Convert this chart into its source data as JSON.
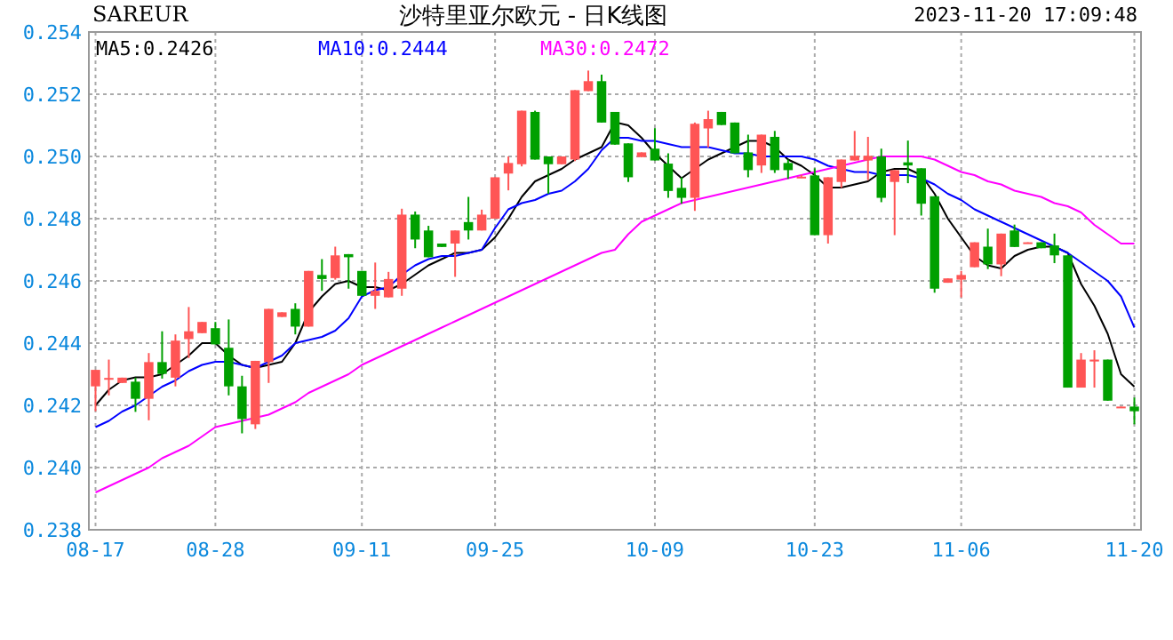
{
  "chart_data": {
    "type": "candlestick",
    "title": "沙特里亚尔欧元 - 日K线图",
    "subtitle": "SAREUR",
    "annotations": [
      "2023-11-20 17:09:48"
    ],
    "categories": [
      "08-17",
      null,
      null,
      null,
      null,
      null,
      null,
      null,
      null,
      "08-28",
      null,
      null,
      null,
      null,
      null,
      null,
      null,
      null,
      null,
      null,
      "09-11",
      null,
      null,
      null,
      null,
      null,
      null,
      null,
      null,
      null,
      "09-25",
      null,
      null,
      null,
      null,
      null,
      null,
      null,
      null,
      null,
      null,
      null,
      "10-09",
      null,
      null,
      null,
      null,
      null,
      null,
      null,
      null,
      null,
      null,
      null,
      "10-23",
      null,
      null,
      null,
      null,
      null,
      null,
      null,
      null,
      null,
      null,
      "11-06",
      null,
      null,
      null,
      null,
      null,
      null,
      null,
      null,
      null,
      null,
      null,
      null,
      "11-20"
    ],
    "ohlc": [
      [
        0.24261,
        0.24314,
        0.24181,
        0.24314
      ],
      [
        0.24284,
        0.24347,
        0.24232,
        0.24288
      ],
      [
        0.24272,
        0.24289,
        0.24272,
        0.24289
      ],
      [
        0.24276,
        0.24289,
        0.24179,
        0.24221
      ],
      [
        0.24221,
        0.24368,
        0.24152,
        0.24339
      ],
      [
        0.24339,
        0.24438,
        0.24286,
        0.24301
      ],
      [
        0.24289,
        0.24428,
        0.24261,
        0.24408
      ],
      [
        0.24413,
        0.24516,
        0.24352,
        0.24438
      ],
      [
        0.24432,
        0.24468,
        0.24432,
        0.24468
      ],
      [
        0.24448,
        0.24468,
        0.24396,
        0.24396
      ],
      [
        0.24385,
        0.24476,
        0.24232,
        0.24261
      ],
      [
        0.24261,
        0.24295,
        0.2411,
        0.24156
      ],
      [
        0.24139,
        0.24343,
        0.24124,
        0.24343
      ],
      [
        0.24339,
        0.2451,
        0.24272,
        0.2451
      ],
      [
        0.24484,
        0.24499,
        0.24484,
        0.24499
      ],
      [
        0.2451,
        0.24528,
        0.24428,
        0.24453
      ],
      [
        0.24453,
        0.24632,
        0.24453,
        0.24632
      ],
      [
        0.24619,
        0.2467,
        0.24568,
        0.24606
      ],
      [
        0.24609,
        0.2471,
        0.24604,
        0.24682
      ],
      [
        0.24686,
        0.24686,
        0.24575,
        0.24676
      ],
      [
        0.24632,
        0.24632,
        0.24552,
        0.24552
      ],
      [
        0.24552,
        0.24659,
        0.2451,
        0.24568
      ],
      [
        0.24547,
        0.24629,
        0.24547,
        0.24606
      ],
      [
        0.24575,
        0.24832,
        0.24552,
        0.24813
      ],
      [
        0.24813,
        0.24823,
        0.24705,
        0.24733
      ],
      [
        0.24762,
        0.24777,
        0.24676,
        0.24676
      ],
      [
        0.2472,
        0.2472,
        0.24709,
        0.24709
      ],
      [
        0.2472,
        0.24762,
        0.24613,
        0.24762
      ],
      [
        0.24789,
        0.2487,
        0.24733,
        0.24762
      ],
      [
        0.24762,
        0.24829,
        0.24762,
        0.24813
      ],
      [
        0.248,
        0.24933,
        0.248,
        0.24933
      ],
      [
        0.24945,
        0.25,
        0.24891,
        0.24979
      ],
      [
        0.24975,
        0.25147,
        0.24968,
        0.25147
      ],
      [
        0.25143,
        0.25147,
        0.2499,
        0.2499
      ],
      [
        0.25,
        0.25,
        0.2488,
        0.24975
      ],
      [
        0.24975,
        0.25,
        0.24975,
        0.25
      ],
      [
        0.2499,
        0.25213,
        0.24985,
        0.25213
      ],
      [
        0.2521,
        0.25276,
        0.2521,
        0.25242
      ],
      [
        0.25242,
        0.25263,
        0.25109,
        0.25109
      ],
      [
        0.25143,
        0.25143,
        0.25038,
        0.25038
      ],
      [
        0.25042,
        0.25042,
        0.24918,
        0.24933
      ],
      [
        0.24998,
        0.25013,
        0.24998,
        0.25013
      ],
      [
        0.25025,
        0.25091,
        0.24987,
        0.24987
      ],
      [
        0.24977,
        0.2501,
        0.24867,
        0.24889
      ],
      [
        0.24899,
        0.24933,
        0.24848,
        0.24867
      ],
      [
        0.24867,
        0.25109,
        0.24825,
        0.25105
      ],
      [
        0.2509,
        0.25147,
        0.25029,
        0.2512
      ],
      [
        0.25143,
        0.25143,
        0.25101,
        0.25101
      ],
      [
        0.25109,
        0.25109,
        0.2501,
        0.2501
      ],
      [
        0.25013,
        0.2507,
        0.24933,
        0.24956
      ],
      [
        0.24971,
        0.2507,
        0.24947,
        0.2507
      ],
      [
        0.25063,
        0.25082,
        0.24947,
        0.24956
      ],
      [
        0.24979,
        0.2499,
        0.24928,
        0.24956
      ],
      [
        0.24931,
        0.24941,
        0.24931,
        0.24935
      ],
      [
        0.24939,
        0.24962,
        0.24747,
        0.24747
      ],
      [
        0.24747,
        0.24933,
        0.2472,
        0.24933
      ],
      [
        0.24918,
        0.2499,
        0.24899,
        0.2499
      ],
      [
        0.24987,
        0.25082,
        0.24987,
        0.25002
      ],
      [
        0.24987,
        0.25063,
        0.24924,
        0.25002
      ],
      [
        0.25,
        0.25025,
        0.24853,
        0.24867
      ],
      [
        0.24918,
        0.24956,
        0.24747,
        0.24956
      ],
      [
        0.24981,
        0.25051,
        0.24914,
        0.24971
      ],
      [
        0.24962,
        0.24962,
        0.2481,
        0.24848
      ],
      [
        0.24872,
        0.24872,
        0.24562,
        0.24575
      ],
      [
        0.24594,
        0.24608,
        0.24594,
        0.24608
      ],
      [
        0.24604,
        0.24632,
        0.24547,
        0.24619
      ],
      [
        0.24644,
        0.24724,
        0.24644,
        0.24724
      ],
      [
        0.2471,
        0.24768,
        0.24638,
        0.24653
      ],
      [
        0.24653,
        0.24752,
        0.24615,
        0.24752
      ],
      [
        0.24762,
        0.24781,
        0.24709,
        0.24709
      ],
      [
        0.2472,
        0.24724,
        0.2472,
        0.24724
      ],
      [
        0.24724,
        0.24724,
        0.24705,
        0.24705
      ],
      [
        0.24714,
        0.24752,
        0.24657,
        0.24682
      ],
      [
        0.24682,
        0.24682,
        0.24257,
        0.24257
      ],
      [
        0.24257,
        0.24368,
        0.24257,
        0.24347
      ],
      [
        0.24341,
        0.24377,
        0.24257,
        0.24347
      ],
      [
        0.24347,
        0.24347,
        0.24215,
        0.24215
      ],
      [
        0.24192,
        0.24196,
        0.24192,
        0.24196
      ],
      [
        0.24196,
        0.24225,
        0.24139,
        0.24181
      ]
    ],
    "series": [
      {
        "name": "MA5:0.2426",
        "type": "line",
        "color": "#000000",
        "values": [
          0.242,
          0.2425,
          0.2428,
          0.2429,
          0.2429,
          0.243,
          0.2433,
          0.2436,
          0.244,
          0.244,
          0.2436,
          0.2433,
          0.2432,
          0.2433,
          0.2434,
          0.244,
          0.245,
          0.2455,
          0.2459,
          0.246,
          0.2458,
          0.2458,
          0.2457,
          0.2459,
          0.2462,
          0.2465,
          0.2467,
          0.2469,
          0.2469,
          0.247,
          0.2474,
          0.248,
          0.2487,
          0.2492,
          0.2494,
          0.2496,
          0.2499,
          0.2501,
          0.2503,
          0.2511,
          0.251,
          0.2506,
          0.2501,
          0.2497,
          0.2493,
          0.2496,
          0.2499,
          0.2501,
          0.2503,
          0.2505,
          0.2505,
          0.2503,
          0.2499,
          0.2497,
          0.2494,
          0.249,
          0.249,
          0.2491,
          0.2492,
          0.2495,
          0.2496,
          0.2496,
          0.2494,
          0.2488,
          0.248,
          0.2474,
          0.2468,
          0.2465,
          0.2464,
          0.2468,
          0.247,
          0.2471,
          0.2471,
          0.2469,
          0.2459,
          0.2452,
          0.2443,
          0.243,
          0.2426
        ]
      },
      {
        "name": "MA10:0.2444",
        "type": "line",
        "color": "#0000ff",
        "values": [
          0.2413,
          0.2415,
          0.2418,
          0.242,
          0.2423,
          0.2426,
          0.2428,
          0.2431,
          0.2433,
          0.2434,
          0.2434,
          0.2433,
          0.2432,
          0.2434,
          0.2436,
          0.244,
          0.2441,
          0.2442,
          0.2444,
          0.2448,
          0.2455,
          0.2457,
          0.2458,
          0.2462,
          0.2465,
          0.2467,
          0.2468,
          0.2468,
          0.2469,
          0.247,
          0.2477,
          0.2483,
          0.2485,
          0.2486,
          0.2488,
          0.2489,
          0.2492,
          0.2496,
          0.2502,
          0.2506,
          0.2506,
          0.2505,
          0.2505,
          0.2504,
          0.2503,
          0.2503,
          0.2503,
          0.2502,
          0.2501,
          0.2501,
          0.25,
          0.25,
          0.25,
          0.25,
          0.2499,
          0.2497,
          0.2496,
          0.2495,
          0.2495,
          0.2494,
          0.2494,
          0.2494,
          0.2493,
          0.2491,
          0.2488,
          0.2486,
          0.2483,
          0.2481,
          0.2479,
          0.2477,
          0.2475,
          0.2473,
          0.2471,
          0.2469,
          0.2466,
          0.2463,
          0.246,
          0.2455,
          0.2445
        ]
      },
      {
        "name": "MA30:0.2472",
        "type": "line",
        "color": "#ff00ff",
        "values": [
          0.2392,
          0.2394,
          0.2396,
          0.2398,
          0.24,
          0.2403,
          0.2405,
          0.2407,
          0.241,
          0.2413,
          0.2414,
          0.2415,
          0.2416,
          0.2417,
          0.2419,
          0.2421,
          0.2424,
          0.2426,
          0.2428,
          0.243,
          0.2433,
          0.2435,
          0.2437,
          0.2439,
          0.2441,
          0.2443,
          0.2445,
          0.2447,
          0.2449,
          0.2451,
          0.2453,
          0.2455,
          0.2457,
          0.2459,
          0.2461,
          0.2463,
          0.2465,
          0.2467,
          0.2469,
          0.247,
          0.2475,
          0.2479,
          0.2481,
          0.2483,
          0.2485,
          0.2486,
          0.2487,
          0.2488,
          0.2489,
          0.249,
          0.2491,
          0.2492,
          0.2493,
          0.2494,
          0.2495,
          0.2496,
          0.2497,
          0.2498,
          0.2499,
          0.25,
          0.25,
          0.25,
          0.25,
          0.2499,
          0.2497,
          0.2495,
          0.2494,
          0.2492,
          0.2491,
          0.2489,
          0.2488,
          0.2487,
          0.2485,
          0.2484,
          0.2482,
          0.2478,
          0.2475,
          0.2472,
          0.2472
        ]
      }
    ],
    "ylim": [
      0.238,
      0.254
    ],
    "yticks": [
      0.238,
      {
        "value": 0.24,
        "label": "0.240"
      },
      0.242,
      0.244,
      0.246,
      0.248,
      {
        "value": 0.25,
        "label": "0.250"
      },
      0.252,
      0.254
    ],
    "grid": true,
    "legend": "top"
  }
}
